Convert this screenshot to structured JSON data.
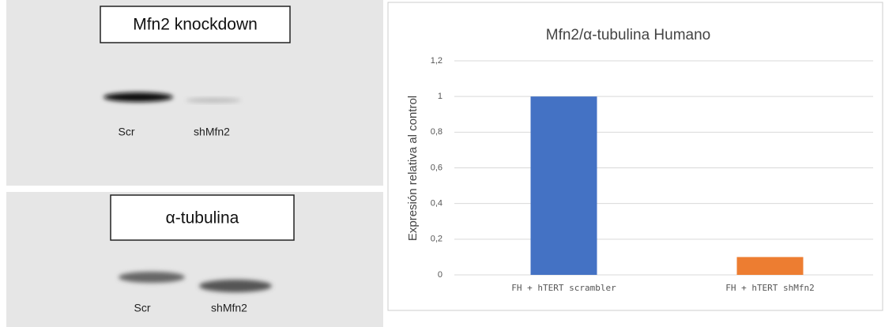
{
  "blots": [
    {
      "title": "Mfn2 knockdown",
      "lanes": [
        "Scr",
        "shMfn2"
      ]
    },
    {
      "title": "α-tubulina",
      "lanes": [
        "Scr",
        "shMfn2"
      ]
    }
  ],
  "chart_data": {
    "type": "bar",
    "title": "Mfn2/α-tubulina Humano",
    "y_label": "Expresión relativa al control",
    "categories": [
      "FH + hTERT scrambler",
      "FH + hTERT shMfn2"
    ],
    "values": [
      1,
      0.1
    ],
    "colors": [
      "#4472c4",
      "#ed7d31"
    ],
    "ylim": [
      0,
      1.2
    ],
    "yticks": [
      0,
      {
        "value": 0.2,
        "label": "0,2"
      },
      {
        "value": 0.4,
        "label": "0,4"
      },
      {
        "value": 0.6,
        "label": "0,6"
      },
      {
        "value": 0.8,
        "label": "0,8"
      },
      1,
      {
        "value": 1.2,
        "label": "1,2"
      }
    ],
    "grid": true
  }
}
